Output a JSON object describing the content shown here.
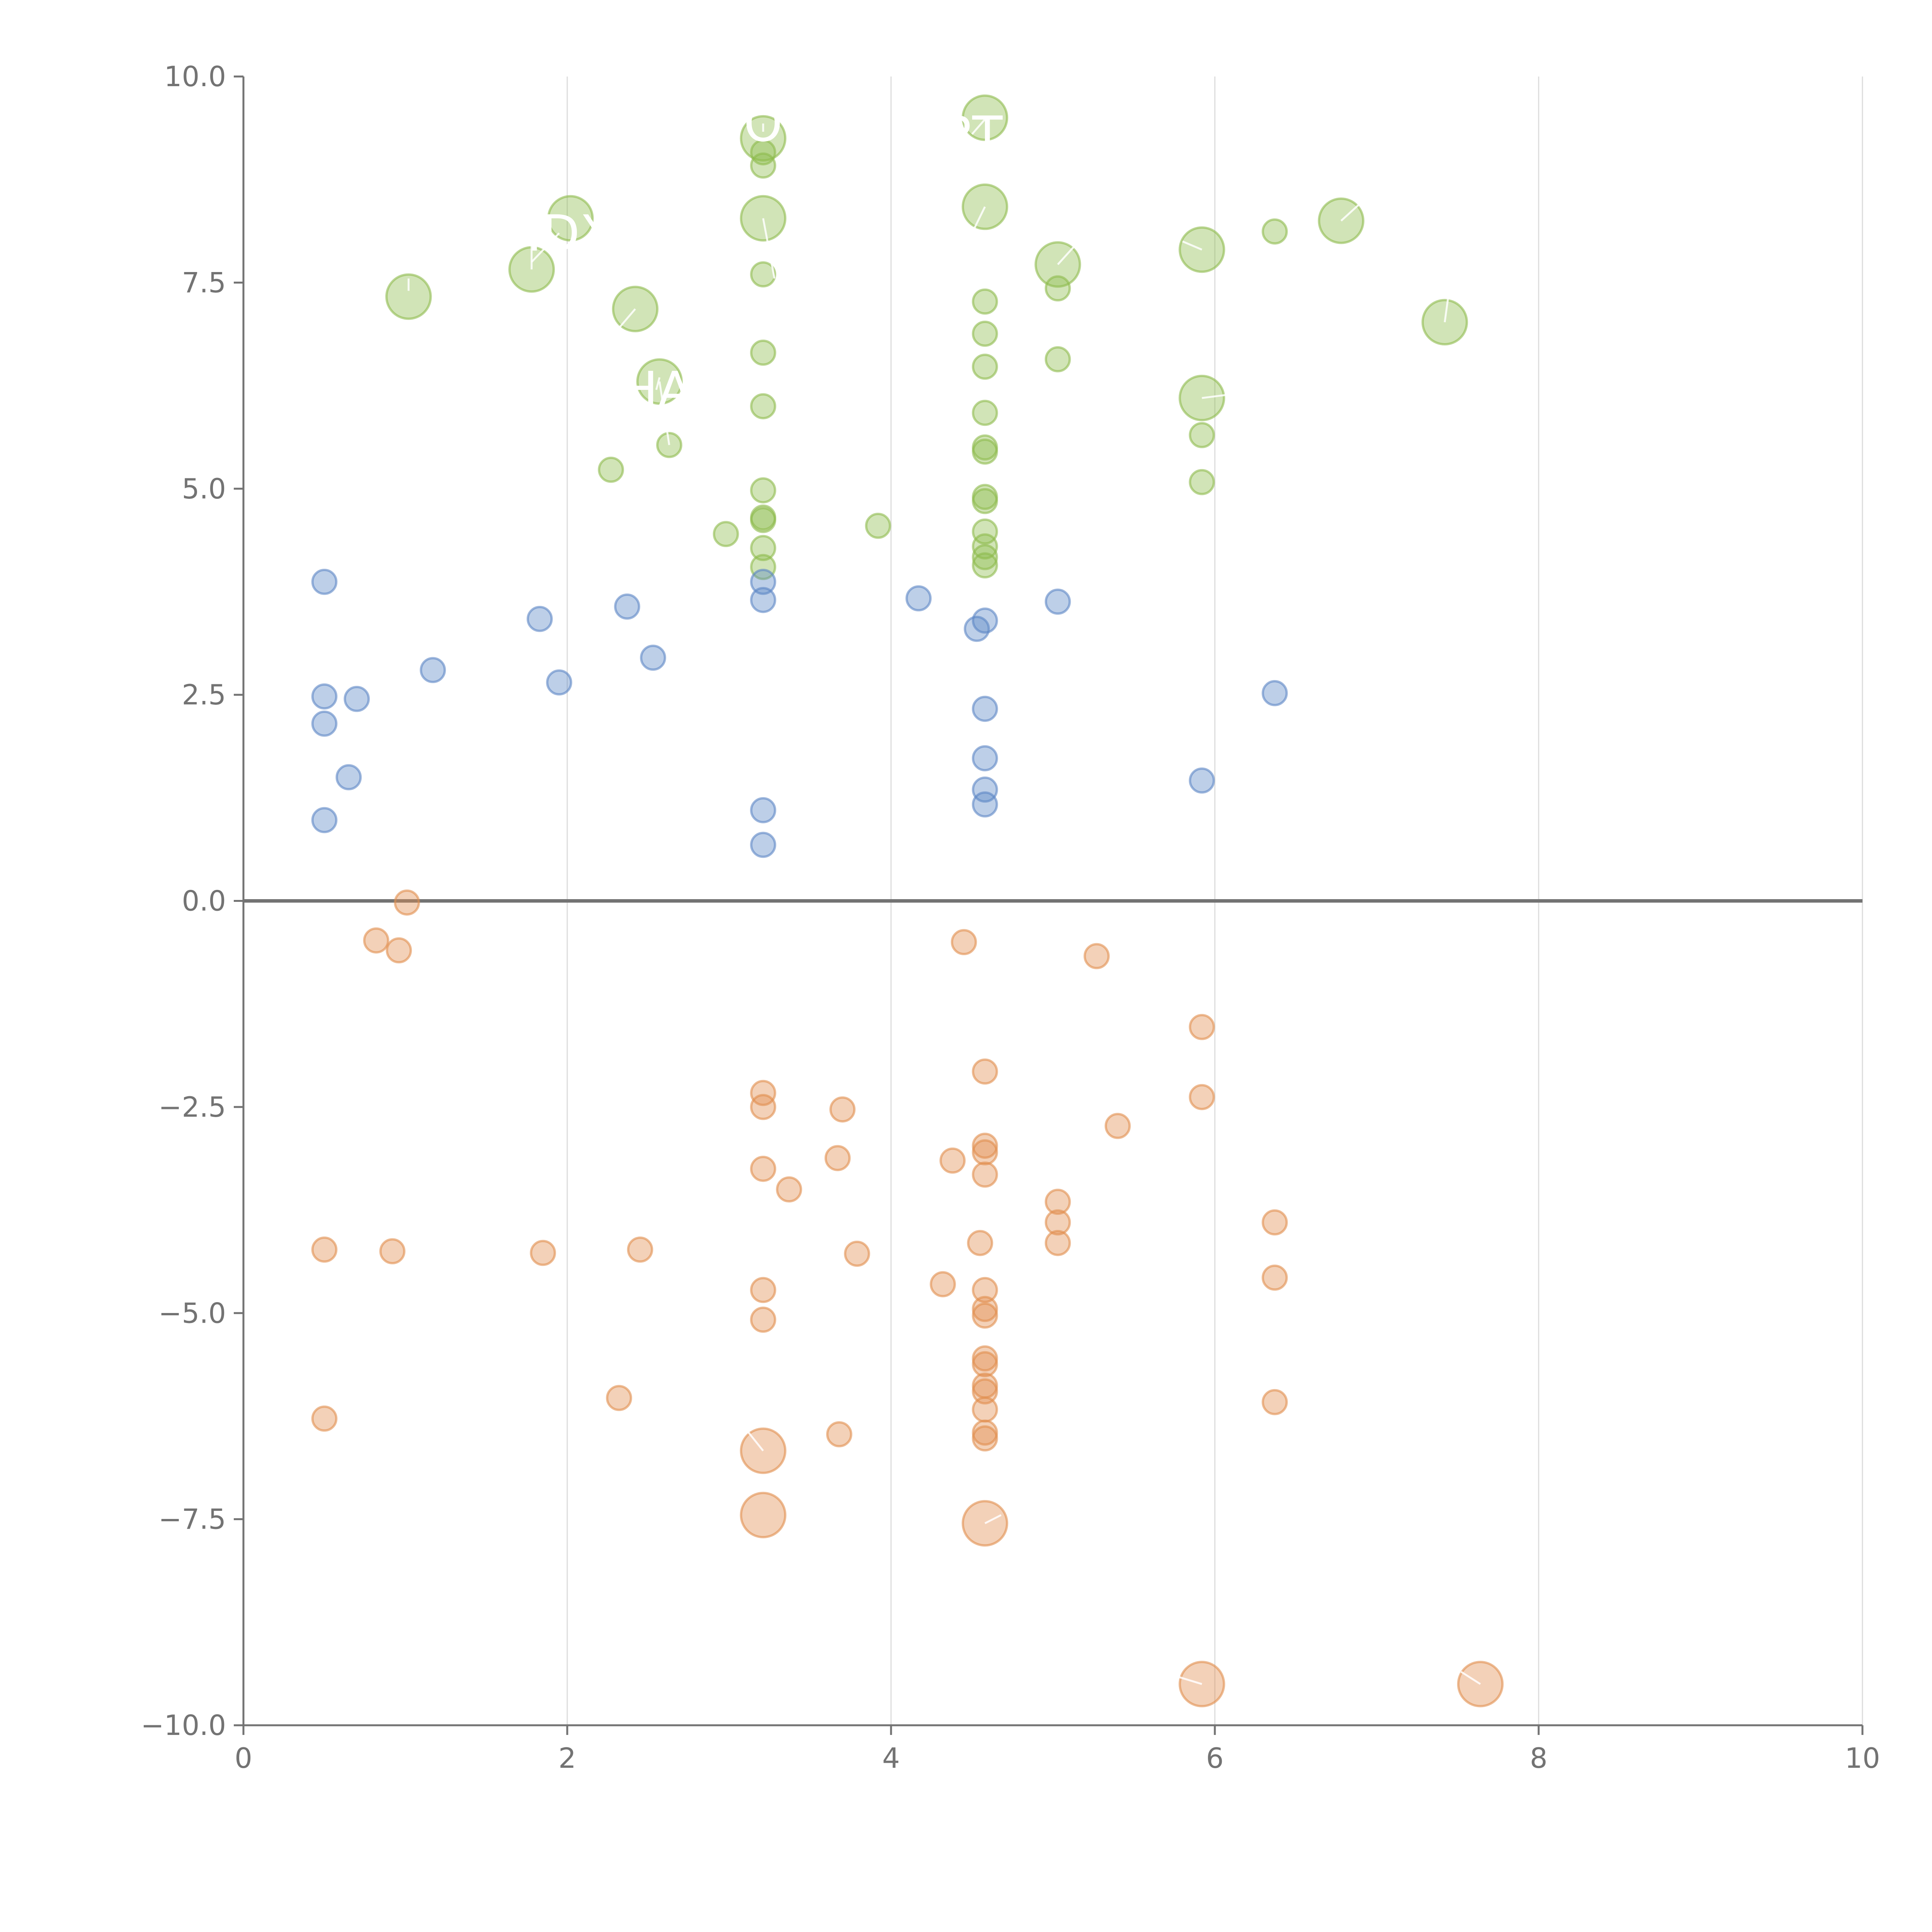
{
  "chart_data": {
    "type": "scatter",
    "title": "",
    "xlabel": "",
    "ylabel": "",
    "xlim": [
      0,
      10
    ],
    "ylim": [
      -10,
      10
    ],
    "x_ticks": [
      "0",
      "2",
      "4",
      "6",
      "8",
      "10"
    ],
    "y_ticks": [
      "−10.0",
      "−7.5",
      "−5.0",
      "−2.5",
      "0.0",
      "2.5",
      "5.0",
      "7.5",
      "10.0"
    ],
    "grid": "vertical",
    "zero_line": true,
    "colors": {
      "green": "#8dbb4c",
      "blue": "#5b86c5",
      "orange": "#e18d4d"
    },
    "series": [
      {
        "name": "green",
        "color": "#8dbb4c",
        "points": [
          [
            1.02,
            7.33,
            1.3
          ],
          [
            1.78,
            7.66,
            1.3
          ],
          [
            2.02,
            8.28,
            1.3
          ],
          [
            2.42,
            7.18,
            1.3
          ],
          [
            2.57,
            6.3,
            1.3
          ],
          [
            2.27,
            5.23,
            0.7
          ],
          [
            2.63,
            5.53,
            0.7
          ],
          [
            3.21,
            9.25,
            1.3
          ],
          [
            3.21,
            9.08,
            0.7
          ],
          [
            3.21,
            8.92,
            0.7
          ],
          [
            3.21,
            8.28,
            1.3
          ],
          [
            3.21,
            7.6,
            0.7
          ],
          [
            3.21,
            6.65,
            0.7
          ],
          [
            3.21,
            6.0,
            0.7
          ],
          [
            3.21,
            4.98,
            0.7
          ],
          [
            3.21,
            4.65,
            0.7
          ],
          [
            3.21,
            4.62,
            0.7
          ],
          [
            3.21,
            4.28,
            0.7
          ],
          [
            3.21,
            4.05,
            0.7
          ],
          [
            2.98,
            4.45,
            0.7
          ],
          [
            3.92,
            4.55,
            0.7
          ],
          [
            4.58,
            9.5,
            1.3
          ],
          [
            4.58,
            8.42,
            1.3
          ],
          [
            4.58,
            7.27,
            0.7
          ],
          [
            4.58,
            6.88,
            0.7
          ],
          [
            4.58,
            6.48,
            0.7
          ],
          [
            4.58,
            5.92,
            0.7
          ],
          [
            4.58,
            5.5,
            0.7
          ],
          [
            4.58,
            5.45,
            0.7
          ],
          [
            4.58,
            4.9,
            0.7
          ],
          [
            4.58,
            4.85,
            0.7
          ],
          [
            4.58,
            4.48,
            0.7
          ],
          [
            4.58,
            4.3,
            0.7
          ],
          [
            4.58,
            4.17,
            0.7
          ],
          [
            4.58,
            4.07,
            0.7
          ],
          [
            5.03,
            7.72,
            1.3
          ],
          [
            5.03,
            7.43,
            0.7
          ],
          [
            5.03,
            6.57,
            0.7
          ],
          [
            5.92,
            7.9,
            1.3
          ],
          [
            5.92,
            6.1,
            1.3
          ],
          [
            5.92,
            5.65,
            0.7
          ],
          [
            5.92,
            5.08,
            0.7
          ],
          [
            6.37,
            8.12,
            0.7
          ],
          [
            6.78,
            8.25,
            1.3
          ],
          [
            7.42,
            7.02,
            1.3
          ]
        ]
      },
      {
        "name": "blue",
        "color": "#5b86c5",
        "points": [
          [
            0.5,
            3.87,
            0.7
          ],
          [
            0.5,
            2.48,
            0.7
          ],
          [
            0.5,
            2.15,
            0.7
          ],
          [
            0.5,
            0.98,
            0.7
          ],
          [
            0.7,
            2.45,
            0.7
          ],
          [
            0.65,
            1.5,
            0.7
          ],
          [
            1.17,
            2.8,
            0.7
          ],
          [
            1.83,
            3.42,
            0.7
          ],
          [
            1.95,
            2.65,
            0.7
          ],
          [
            2.37,
            3.57,
            0.7
          ],
          [
            2.53,
            2.95,
            0.7
          ],
          [
            3.21,
            3.87,
            0.7
          ],
          [
            3.21,
            3.65,
            0.7
          ],
          [
            3.21,
            1.1,
            0.7
          ],
          [
            3.21,
            0.68,
            0.7
          ],
          [
            4.17,
            3.67,
            0.7
          ],
          [
            4.53,
            3.3,
            0.7
          ],
          [
            4.58,
            3.4,
            0.7
          ],
          [
            4.58,
            2.33,
            0.7
          ],
          [
            4.58,
            1.73,
            0.7
          ],
          [
            4.58,
            1.35,
            0.7
          ],
          [
            4.58,
            1.17,
            0.7
          ],
          [
            5.03,
            3.63,
            0.7
          ],
          [
            5.92,
            1.46,
            0.7
          ],
          [
            6.37,
            2.52,
            0.7
          ]
        ]
      },
      {
        "name": "orange",
        "color": "#e18d4d",
        "points": [
          [
            1.01,
            -0.02,
            0.7
          ],
          [
            0.82,
            -0.48,
            0.7
          ],
          [
            0.96,
            -0.6,
            0.7
          ],
          [
            0.5,
            -4.23,
            0.7
          ],
          [
            0.92,
            -4.25,
            0.7
          ],
          [
            1.85,
            -4.27,
            0.7
          ],
          [
            2.45,
            -4.23,
            0.7
          ],
          [
            0.5,
            -6.28,
            0.7
          ],
          [
            2.32,
            -6.03,
            0.7
          ],
          [
            3.21,
            -2.33,
            0.7
          ],
          [
            3.21,
            -2.5,
            0.7
          ],
          [
            3.21,
            -3.25,
            0.7
          ],
          [
            3.21,
            -4.72,
            0.7
          ],
          [
            3.21,
            -5.08,
            0.7
          ],
          [
            3.21,
            -6.67,
            1.3
          ],
          [
            3.21,
            -7.45,
            1.3
          ],
          [
            3.37,
            -3.5,
            0.7
          ],
          [
            3.67,
            -3.12,
            0.7
          ],
          [
            3.7,
            -2.53,
            0.7
          ],
          [
            3.79,
            -4.28,
            0.7
          ],
          [
            3.68,
            -6.47,
            0.7
          ],
          [
            4.32,
            -4.65,
            0.7
          ],
          [
            4.38,
            -3.15,
            0.7
          ],
          [
            4.45,
            -0.5,
            0.7
          ],
          [
            4.55,
            -4.15,
            0.7
          ],
          [
            4.58,
            -2.07,
            0.7
          ],
          [
            4.58,
            -2.97,
            0.7
          ],
          [
            4.58,
            -3.05,
            0.7
          ],
          [
            4.58,
            -3.32,
            0.7
          ],
          [
            4.58,
            -4.72,
            0.7
          ],
          [
            4.58,
            -4.95,
            0.7
          ],
          [
            4.58,
            -5.03,
            0.7
          ],
          [
            4.58,
            -5.55,
            0.7
          ],
          [
            4.58,
            -5.62,
            0.7
          ],
          [
            4.58,
            -5.88,
            0.7
          ],
          [
            4.58,
            -5.95,
            0.7
          ],
          [
            4.58,
            -6.17,
            0.7
          ],
          [
            4.58,
            -6.45,
            0.7
          ],
          [
            4.58,
            -6.52,
            0.7
          ],
          [
            4.58,
            -7.55,
            1.3
          ],
          [
            5.03,
            -3.65,
            0.7
          ],
          [
            5.03,
            -3.9,
            0.7
          ],
          [
            5.03,
            -4.15,
            0.7
          ],
          [
            5.27,
            -0.67,
            0.7
          ],
          [
            5.4,
            -2.73,
            0.7
          ],
          [
            5.92,
            -1.53,
            0.7
          ],
          [
            5.92,
            -2.38,
            0.7
          ],
          [
            5.92,
            -9.5,
            1.3
          ],
          [
            6.37,
            -3.9,
            0.7
          ],
          [
            6.37,
            -4.57,
            0.7
          ],
          [
            6.37,
            -6.08,
            0.7
          ],
          [
            7.64,
            -9.5,
            1.3
          ]
        ]
      }
    ],
    "annotations": [
      {
        "text": "O",
        "x": 3.21,
        "y": 9.43,
        "lx": 3.21,
        "ly": 9.33
      },
      {
        "text": "RT",
        "x": 4.5,
        "y": 9.3,
        "lx": 4.58,
        "ly": 9.48
      },
      {
        "text": "HDX",
        "x": 1.95,
        "y": 8.1,
        "lx": 1.78,
        "ly": 7.75
      },
      {
        "text": "HA",
        "x": 2.55,
        "y": 6.2,
        "lx": 2.57,
        "ly": 6.35
      }
    ],
    "leader_lines": [
      [
        1.02,
        7.4,
        1.02,
        7.55
      ],
      [
        1.78,
        7.66,
        1.78,
        7.95
      ],
      [
        2.42,
        7.18,
        2.32,
        6.95
      ],
      [
        2.57,
        6.3,
        2.63,
        5.53
      ],
      [
        3.21,
        8.28,
        3.28,
        7.55
      ],
      [
        4.58,
        8.42,
        4.5,
        8.1
      ],
      [
        5.03,
        7.72,
        5.15,
        7.98
      ],
      [
        5.92,
        7.9,
        5.8,
        8.0
      ],
      [
        5.92,
        6.1,
        6.12,
        6.15
      ],
      [
        6.78,
        8.25,
        6.92,
        8.5
      ],
      [
        7.42,
        7.02,
        7.45,
        7.45
      ],
      [
        3.21,
        -6.67,
        3.08,
        -6.35
      ],
      [
        4.58,
        -7.55,
        4.68,
        -7.45
      ],
      [
        5.92,
        -9.5,
        5.72,
        -9.38
      ],
      [
        7.64,
        -9.5,
        7.52,
        -9.35
      ]
    ]
  }
}
